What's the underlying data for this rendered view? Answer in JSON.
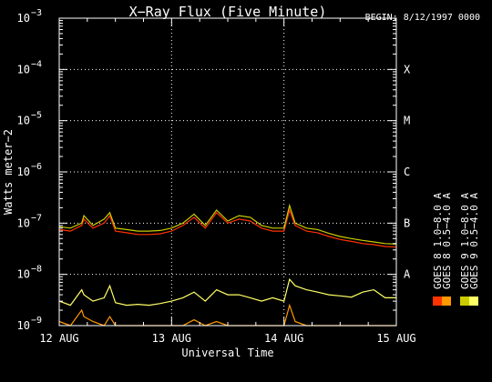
{
  "page": {
    "title": "X−Ray Flux (Five Minute)",
    "begin_label": "BEGIN: 8/12/1997 0000"
  },
  "chart_data": {
    "type": "line",
    "title": "X−Ray Flux (Five Minute)",
    "xlabel": "Universal Time",
    "ylabel": "Watts meter−2",
    "y_scale": "log",
    "ylim": [
      1e-09,
      0.001
    ],
    "y_ticks": [
      {
        "value": 0.001,
        "base": "10",
        "exp": "−3"
      },
      {
        "value": 0.0001,
        "base": "10",
        "exp": "−4"
      },
      {
        "value": 1e-05,
        "base": "10",
        "exp": "−5"
      },
      {
        "value": 1e-06,
        "base": "10",
        "exp": "−6"
      },
      {
        "value": 1e-07,
        "base": "10",
        "exp": "−7"
      },
      {
        "value": 1e-08,
        "base": "10",
        "exp": "−8"
      },
      {
        "value": 1e-09,
        "base": "10",
        "exp": "−9"
      }
    ],
    "xlim": [
      "1997-08-12",
      "1997-08-15"
    ],
    "x_ticks": [
      "12 AUG",
      "13 AUG",
      "14 AUG",
      "15 AUG"
    ],
    "flare_classes": [
      {
        "label": "X",
        "value": 0.0001
      },
      {
        "label": "M",
        "value": 1e-05
      },
      {
        "label": "C",
        "value": 1e-06
      },
      {
        "label": "B",
        "value": 1e-07
      },
      {
        "label": "A",
        "value": 1e-08
      }
    ],
    "grid": "dotted horizontal at class levels, dotted vertical at day boundaries",
    "x_days": [
      0,
      0.1,
      0.2,
      0.22,
      0.3,
      0.4,
      0.45,
      0.5,
      0.6,
      0.7,
      0.8,
      0.9,
      1.0,
      1.1,
      1.2,
      1.3,
      1.4,
      1.5,
      1.6,
      1.7,
      1.8,
      1.9,
      2.0,
      2.05,
      2.1,
      2.2,
      2.3,
      2.4,
      2.5,
      2.6,
      2.7,
      2.8,
      2.9,
      3.0
    ],
    "series": [
      {
        "name": "GOES 8 1.0−8.0 A",
        "color": "#ff3300",
        "values": [
          7.5e-08,
          7e-08,
          9e-08,
          1.2e-07,
          8e-08,
          1e-07,
          1.4e-07,
          7e-08,
          6.5e-08,
          6e-08,
          6e-08,
          6.2e-08,
          7e-08,
          9e-08,
          1.3e-07,
          8e-08,
          1.6e-07,
          1e-07,
          1.2e-07,
          1.1e-07,
          8e-08,
          7e-08,
          7e-08,
          1.8e-07,
          9e-08,
          7e-08,
          6.5e-08,
          5.5e-08,
          4.8e-08,
          4.4e-08,
          4e-08,
          3.8e-08,
          3.5e-08,
          3.4e-08
        ]
      },
      {
        "name": "GOES 8 0.5−4.0 A",
        "color": "#ff9900",
        "values": [
          1.2e-09,
          1e-09,
          2e-09,
          1.5e-09,
          1.2e-09,
          1e-09,
          1.5e-09,
          1e-09,
          1e-09,
          1e-09,
          1e-09,
          1e-09,
          1e-09,
          1e-09,
          1.3e-09,
          1e-09,
          1.2e-09,
          1e-09,
          1e-09,
          1e-09,
          1e-09,
          1e-09,
          1e-09,
          2.5e-09,
          1.2e-09,
          1e-09,
          1e-09,
          1e-09,
          1e-09,
          1e-09,
          1e-09,
          1e-09,
          1e-09,
          1e-09
        ]
      },
      {
        "name": "GOES 9 1.0−8.0 A",
        "color": "#cccc00",
        "values": [
          8.5e-08,
          8e-08,
          1e-07,
          1.4e-07,
          9e-08,
          1.2e-07,
          1.6e-07,
          8e-08,
          7.5e-08,
          7e-08,
          7e-08,
          7.2e-08,
          8e-08,
          1e-07,
          1.5e-07,
          9e-08,
          1.8e-07,
          1.1e-07,
          1.4e-07,
          1.3e-07,
          9e-08,
          8e-08,
          8e-08,
          2.2e-07,
          1e-07,
          8e-08,
          7.5e-08,
          6.3e-08,
          5.5e-08,
          5e-08,
          4.6e-08,
          4.3e-08,
          4e-08,
          3.9e-08
        ]
      },
      {
        "name": "GOES 9 0.5−4.0 A",
        "color": "#ffff66",
        "values": [
          3e-09,
          2.5e-09,
          5e-09,
          4e-09,
          3e-09,
          3.5e-09,
          6e-09,
          2.8e-09,
          2.5e-09,
          2.6e-09,
          2.5e-09,
          2.7e-09,
          3e-09,
          3.5e-09,
          4.5e-09,
          3e-09,
          5e-09,
          4e-09,
          4e-09,
          3.5e-09,
          3e-09,
          3.5e-09,
          3e-09,
          8e-09,
          6e-09,
          5e-09,
          4.5e-09,
          4e-09,
          3.8e-09,
          3.6e-09,
          4.5e-09,
          5e-09,
          3.5e-09,
          3.5e-09
        ]
      }
    ],
    "legend_placement": "right, vertical"
  }
}
